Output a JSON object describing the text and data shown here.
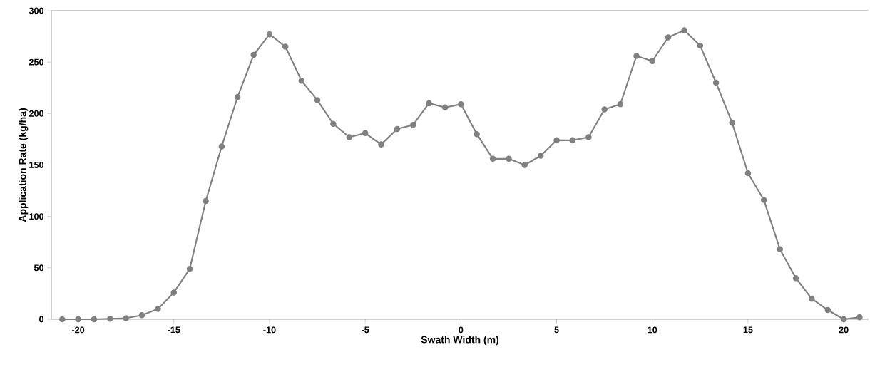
{
  "chart_data": {
    "type": "line",
    "xlabel": "Swath Width (m)",
    "ylabel": "Application Rate (kg/ha)",
    "x": [
      -20.83,
      -20.0,
      -19.17,
      -18.33,
      -17.5,
      -16.67,
      -15.83,
      -15.0,
      -14.17,
      -13.33,
      -12.5,
      -11.67,
      -10.83,
      -10.0,
      -9.17,
      -8.33,
      -7.5,
      -6.67,
      -5.83,
      -5.0,
      -4.17,
      -3.33,
      -2.5,
      -1.67,
      -0.83,
      0.0,
      0.83,
      1.67,
      2.5,
      3.33,
      4.17,
      5.0,
      5.83,
      6.67,
      7.5,
      8.33,
      9.17,
      10.0,
      10.83,
      11.67,
      12.5,
      13.33,
      14.17,
      15.0,
      15.83,
      16.67,
      17.5,
      18.33,
      19.17,
      20.0,
      20.83
    ],
    "series": [
      {
        "color": "#808080",
        "values": [
          0,
          0,
          0,
          0.5,
          1,
          4,
          10,
          26,
          49,
          115,
          168,
          216,
          257,
          277,
          265,
          232,
          213,
          190,
          177,
          181,
          170,
          185,
          189,
          210,
          206,
          209,
          180,
          156,
          156,
          150,
          159,
          174,
          174,
          177,
          204,
          209,
          256,
          251,
          274,
          281,
          266,
          230,
          191,
          142,
          116,
          68,
          40,
          20,
          9,
          0,
          2
        ]
      }
    ],
    "xlim": [
      -21.4,
      21.3
    ],
    "ylim": [
      0,
      300
    ],
    "xticks": [
      -20,
      -15,
      -10,
      -5,
      0,
      5,
      10,
      15,
      20
    ],
    "yticks": [
      0,
      50,
      100,
      150,
      200,
      250,
      300
    ],
    "grid": false,
    "marker": "circle",
    "line_style": "solid"
  }
}
